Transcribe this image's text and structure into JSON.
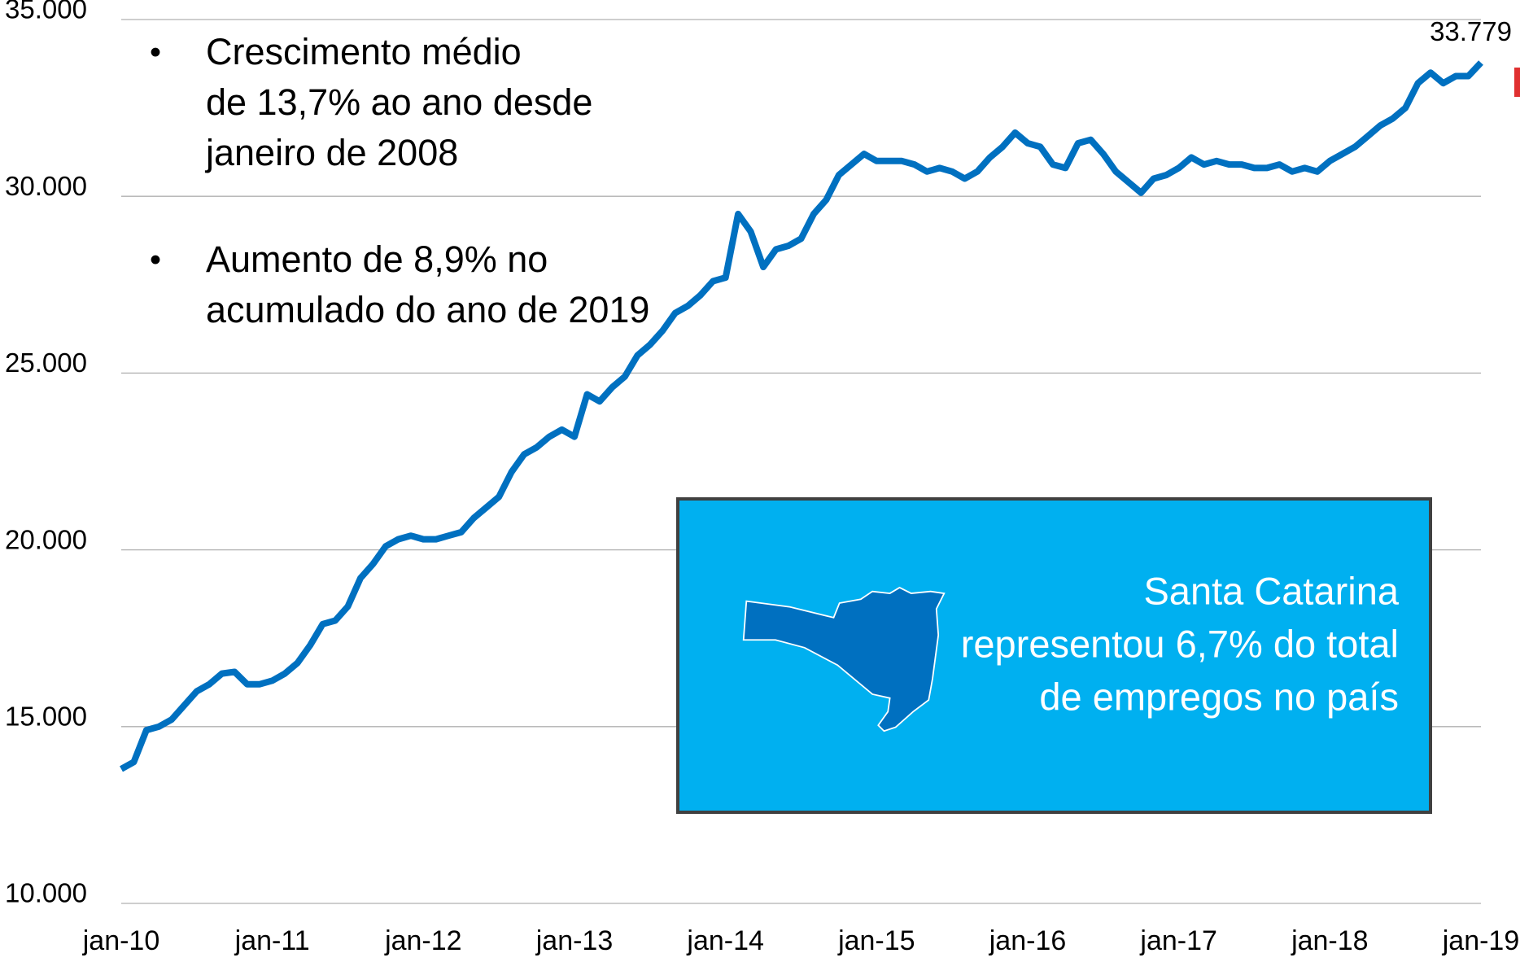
{
  "chart_data": {
    "type": "line",
    "categories": [
      "jan-10",
      null,
      null,
      null,
      null,
      null,
      null,
      null,
      null,
      null,
      null,
      null,
      "jan-11",
      null,
      null,
      null,
      null,
      null,
      null,
      null,
      null,
      null,
      null,
      null,
      "jan-12",
      null,
      null,
      null,
      null,
      null,
      null,
      null,
      null,
      null,
      null,
      null,
      "jan-13",
      null,
      null,
      null,
      null,
      null,
      null,
      null,
      null,
      null,
      null,
      null,
      "jan-14",
      null,
      null,
      null,
      null,
      null,
      null,
      null,
      null,
      null,
      null,
      null,
      "jan-15",
      null,
      null,
      null,
      null,
      null,
      null,
      null,
      null,
      null,
      null,
      null,
      "jan-16",
      null,
      null,
      null,
      null,
      null,
      null,
      null,
      null,
      null,
      null,
      null,
      "jan-17",
      null,
      null,
      null,
      null,
      null,
      null,
      null,
      null,
      null,
      null,
      null,
      "jan-18",
      null,
      null,
      null,
      null,
      null,
      null,
      null,
      null,
      null,
      null,
      null,
      "jan-19"
    ],
    "series": [
      {
        "color": "#0070c0",
        "values": [
          13800,
          14000,
          14900,
          15000,
          15200,
          15600,
          16000,
          16200,
          16500,
          16550,
          16200,
          16200,
          16300,
          16500,
          16800,
          17300,
          17900,
          18000,
          18400,
          19200,
          19600,
          20100,
          20300,
          20400,
          20300,
          20300,
          20400,
          20500,
          20900,
          21200,
          21500,
          22200,
          22700,
          22900,
          23200,
          23400,
          23200,
          24400,
          24200,
          24600,
          24900,
          25500,
          25800,
          26200,
          26700,
          26900,
          27200,
          27600,
          27700,
          29500,
          29000,
          28000,
          28500,
          28600,
          28800,
          29500,
          29900,
          30600,
          30900,
          31200,
          31000,
          31000,
          31000,
          30900,
          30700,
          30800,
          30700,
          30500,
          30700,
          31100,
          31400,
          31800,
          31500,
          31400,
          30900,
          30800,
          31500,
          31600,
          31200,
          30700,
          30400,
          30100,
          30500,
          30600,
          30800,
          31100,
          30900,
          31000,
          30900,
          30900,
          30800,
          30800,
          30900,
          30700,
          30800,
          30700,
          31000,
          31200,
          31400,
          31700,
          32000,
          32200,
          32500,
          33200,
          33500,
          33200,
          33400,
          33400,
          33779
        ],
        "value_labels": [
          null,
          null,
          null,
          null,
          null,
          null,
          null,
          null,
          null,
          null,
          null,
          null,
          null,
          null,
          null,
          null,
          null,
          null,
          null,
          null,
          null,
          null,
          null,
          null,
          null,
          null,
          null,
          null,
          null,
          null,
          null,
          null,
          null,
          null,
          null,
          null,
          null,
          null,
          null,
          null,
          null,
          null,
          null,
          null,
          null,
          null,
          null,
          null,
          null,
          null,
          null,
          null,
          null,
          null,
          null,
          null,
          null,
          null,
          null,
          null,
          null,
          null,
          null,
          null,
          null,
          null,
          null,
          null,
          null,
          null,
          null,
          null,
          null,
          null,
          null,
          null,
          null,
          null,
          null,
          null,
          null,
          null,
          null,
          null,
          null,
          null,
          null,
          null,
          null,
          null,
          null,
          null,
          null,
          null,
          null,
          null,
          null,
          null,
          null,
          null,
          null,
          null,
          null,
          null,
          null,
          null,
          null,
          null,
          "33.779"
        ]
      }
    ],
    "ylim": [
      10000,
      35000
    ],
    "yticks": [
      {
        "value": 10000,
        "label": "10.000"
      },
      {
        "value": 15000,
        "label": "15.000"
      },
      {
        "value": 20000,
        "label": "20.000"
      },
      {
        "value": 25000,
        "label": "25.000"
      },
      {
        "value": 30000,
        "label": "30.000"
      },
      {
        "value": 35000,
        "label": "35.000"
      }
    ],
    "grid": true,
    "bullet_symbol": "•",
    "bullets": [
      [
        "Crescimento médio",
        "de 13,7% ao ano desde",
        "janeiro de 2008"
      ],
      [
        "Aumento de 8,9% no",
        "acumulado do ano de 2019"
      ]
    ],
    "callout": [
      "Santa Catarina",
      "representou 6,7% do total",
      "de empregos no país"
    ]
  }
}
